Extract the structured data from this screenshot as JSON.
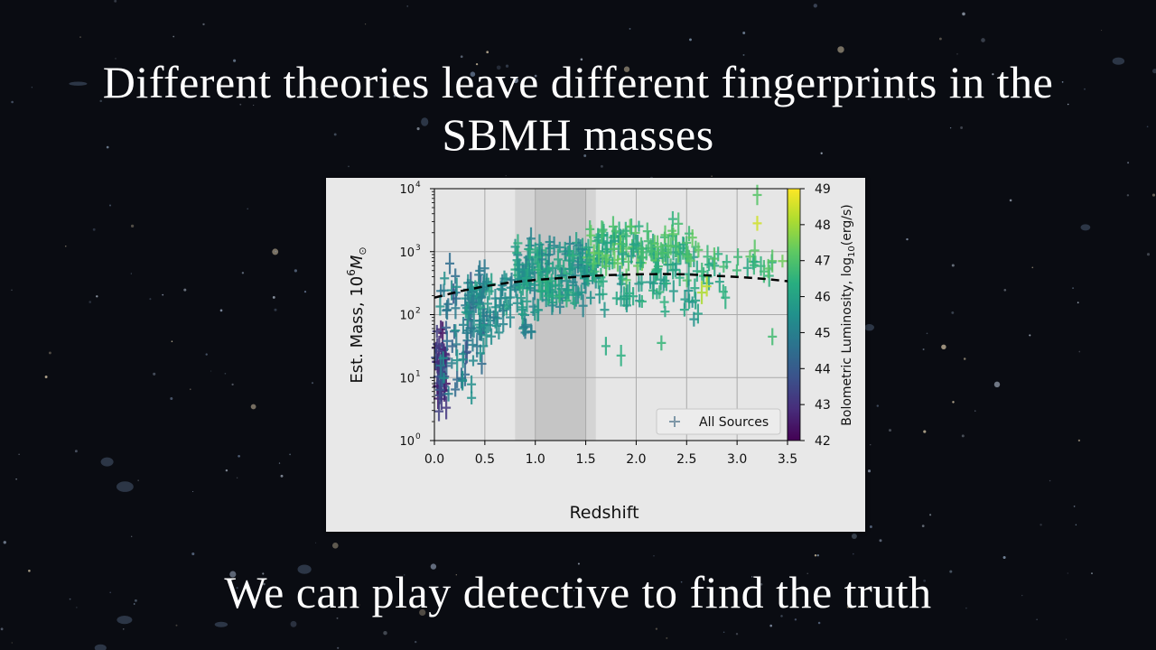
{
  "slide": {
    "title_line1": "Different theories leave different fingerprints in the",
    "title_line2": "SBMH masses",
    "subtitle": "We can play detective to find the truth"
  },
  "colors": {
    "background": "#0a0c12",
    "text": "#ffffff",
    "panel": "#e8e8e8",
    "shade_light": "#cfcfcf",
    "shade_dark": "#b8b8b8",
    "legend_marker": "#7f98a8"
  },
  "chart_data": {
    "type": "scatter",
    "xlabel": "Redshift",
    "ylabel": "Est. Mass, 10",
    "ylabel_sup": "6",
    "ylabel_unit": "M",
    "ylabel_sub": "⊙",
    "xlim": [
      0,
      3.5
    ],
    "ylim_log10": [
      0,
      4
    ],
    "y_scale": "log",
    "grid": true,
    "x_ticks": [
      "0.0",
      "0.5",
      "1.0",
      "1.5",
      "2.0",
      "2.5",
      "3.0",
      "3.5"
    ],
    "y_ticks": [
      {
        "base": "10",
        "exp": "0"
      },
      {
        "base": "10",
        "exp": "1"
      },
      {
        "base": "10",
        "exp": "2"
      },
      {
        "base": "10",
        "exp": "3"
      },
      {
        "base": "10",
        "exp": "4"
      }
    ],
    "shaded_bands": [
      {
        "x": [
          0.8,
          1.6
        ],
        "shade": "light"
      },
      {
        "x": [
          1.0,
          1.5
        ],
        "shade": "dark"
      }
    ],
    "legend": {
      "label": "All Sources",
      "marker": "+",
      "location": "lower-right"
    },
    "colorbar": {
      "label": "Bolometric Luminosity, log",
      "label_sub": "10",
      "label_unit": "(erg/s)",
      "min": 42,
      "max": 49,
      "ticks": [
        "42",
        "43",
        "44",
        "45",
        "46",
        "47",
        "48",
        "49"
      ],
      "colormap": "viridis"
    },
    "curve": {
      "style": "dashed",
      "x": [
        0.0,
        0.25,
        0.5,
        0.75,
        1.0,
        1.25,
        1.5,
        1.75,
        2.0,
        2.25,
        2.5,
        2.75,
        3.0,
        3.25,
        3.5
      ],
      "log10_mass": [
        2.27,
        2.37,
        2.45,
        2.51,
        2.55,
        2.58,
        2.61,
        2.63,
        2.64,
        2.645,
        2.64,
        2.62,
        2.6,
        2.57,
        2.53
      ]
    },
    "point_generation": {
      "groups": [
        {
          "n": 60,
          "x": [
            0.0,
            0.12
          ],
          "logM": [
            0.3,
            1.9
          ],
          "lum": [
            42.3,
            44.3
          ]
        },
        {
          "n": 70,
          "x": [
            0.05,
            0.5
          ],
          "logM": [
            0.5,
            2.9
          ],
          "lum": [
            43.8,
            45.6
          ]
        },
        {
          "n": 90,
          "x": [
            0.3,
            1.0
          ],
          "logM": [
            1.4,
            2.9
          ],
          "lum": [
            44.8,
            46.0
          ]
        },
        {
          "n": 170,
          "x": [
            0.8,
            1.7
          ],
          "logM": [
            2.0,
            3.3
          ],
          "lum": [
            45.0,
            46.6
          ]
        },
        {
          "n": 130,
          "x": [
            1.5,
            2.6
          ],
          "logM": [
            2.5,
            3.55
          ],
          "lum": [
            45.8,
            47.4
          ]
        },
        {
          "n": 45,
          "x": [
            1.8,
            2.9
          ],
          "logM": [
            1.9,
            2.8
          ],
          "lum": [
            45.5,
            46.6
          ]
        },
        {
          "n": 25,
          "x": [
            2.5,
            3.4
          ],
          "logM": [
            2.5,
            3.1
          ],
          "lum": [
            46.0,
            47.3
          ]
        }
      ],
      "extra_points": [
        {
          "x": 3.2,
          "logM": 3.9,
          "lum": 47.1
        },
        {
          "x": 3.2,
          "logM": 3.45,
          "lum": 48.5
        },
        {
          "x": 2.65,
          "logM": 2.35,
          "lum": 48.1
        },
        {
          "x": 2.7,
          "logM": 2.45,
          "lum": 48.3
        },
        {
          "x": 3.35,
          "logM": 1.65,
          "lum": 46.8
        },
        {
          "x": 2.25,
          "logM": 1.55,
          "lum": 46.6
        },
        {
          "x": 3.45,
          "logM": 2.85,
          "lum": 47.4
        },
        {
          "x": 1.7,
          "logM": 1.5,
          "lum": 46.3
        },
        {
          "x": 1.85,
          "logM": 1.35,
          "lum": 46.4
        }
      ]
    }
  }
}
